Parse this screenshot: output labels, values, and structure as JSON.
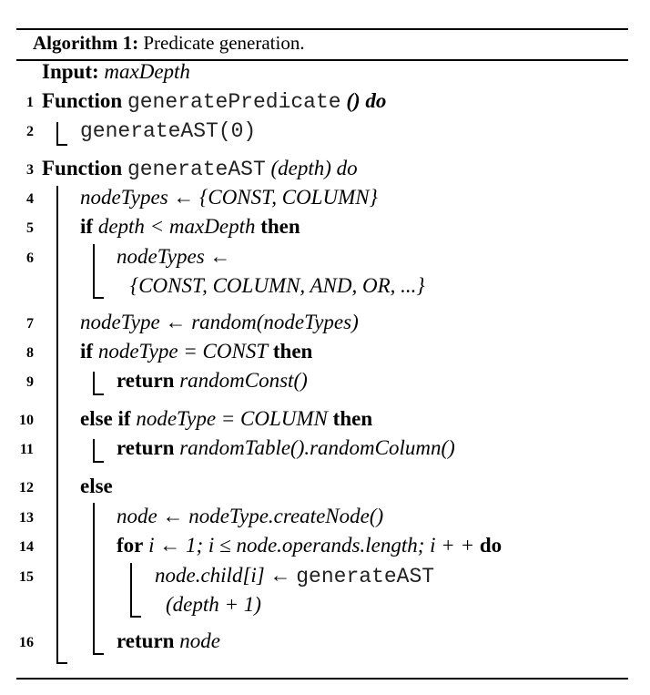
{
  "caption": {
    "label": "Algorithm 1:",
    "title": "Predicate generation."
  },
  "input": {
    "label": "Input:",
    "value": "maxDepth"
  },
  "lines": [
    {
      "num": "1",
      "kw": "Function",
      "code": "generatePredicate",
      "rest": "() do"
    },
    {
      "num": "2",
      "code": "generateAST(0)"
    },
    {
      "num": "3",
      "kw": "Function",
      "code": "generateAST",
      "rest": "(depth) do"
    },
    {
      "num": "4",
      "text": "nodeTypes ← {CONST, COLUMN}"
    },
    {
      "num": "5",
      "kw": "if",
      "text": "depth < maxDepth",
      "kw2": "then"
    },
    {
      "num": "6",
      "text": "nodeTypes ←",
      "text2": "{CONST, COLUMN, AND, OR, ...}"
    },
    {
      "num": "7",
      "text": "nodeType ← random(nodeTypes)"
    },
    {
      "num": "8",
      "kw": "if",
      "text": "nodeType = CONST",
      "kw2": "then"
    },
    {
      "num": "9",
      "kw": "return",
      "text": "randomConst()"
    },
    {
      "num": "10",
      "kw": "else if",
      "text": "nodeType = COLUMN",
      "kw2": "then"
    },
    {
      "num": "11",
      "kw": "return",
      "text": "randomTable().randomColumn()"
    },
    {
      "num": "12",
      "kw": "else"
    },
    {
      "num": "13",
      "text": "node ← nodeType.createNode()"
    },
    {
      "num": "14",
      "kw": "for",
      "text": "i ← 1; i ≤ node.operands.length; i + +",
      "kw2": "do"
    },
    {
      "num": "15",
      "text": "node.child[i] ←",
      "code": "generateAST",
      "text2": "(depth + 1)"
    },
    {
      "num": "16",
      "kw": "return",
      "text": "node"
    }
  ]
}
